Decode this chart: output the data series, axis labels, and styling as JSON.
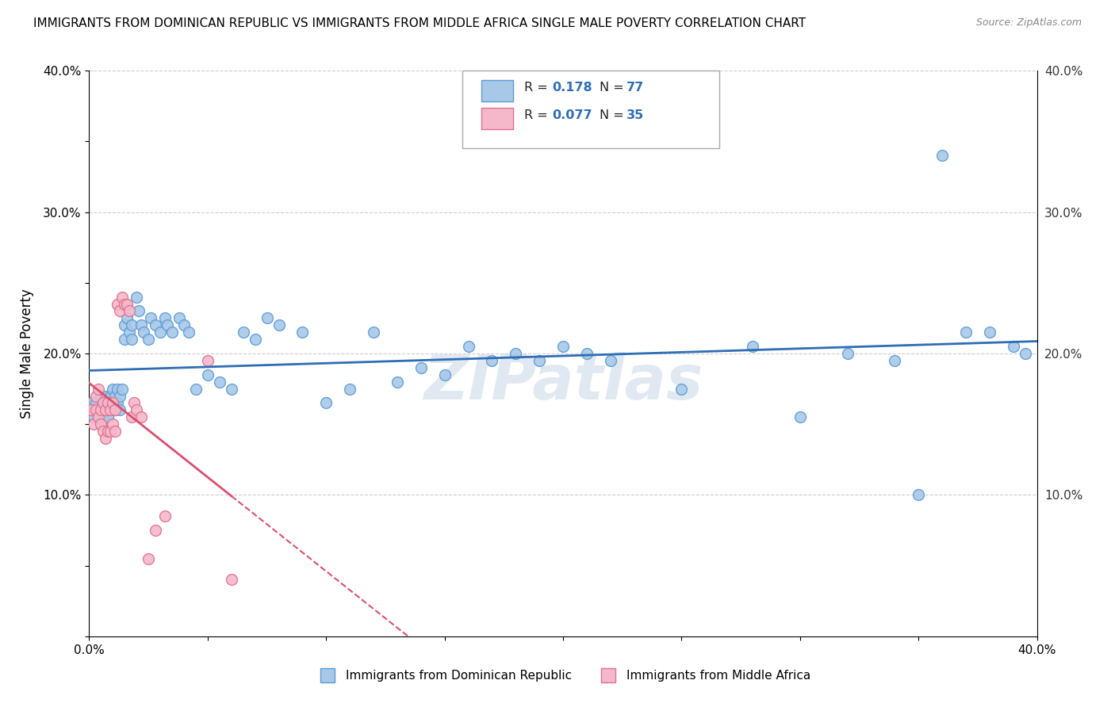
{
  "title": "IMMIGRANTS FROM DOMINICAN REPUBLIC VS IMMIGRANTS FROM MIDDLE AFRICA SINGLE MALE POVERTY CORRELATION CHART",
  "source": "Source: ZipAtlas.com",
  "ylabel": "Single Male Poverty",
  "xlim": [
    0,
    0.4
  ],
  "ylim": [
    0,
    0.4
  ],
  "series1_color": "#a8c8e8",
  "series1_edge": "#5b9bd5",
  "series2_color": "#f4b8ca",
  "series2_edge": "#e07090",
  "line1_color": "#2e6db4",
  "line2_color": "#d94f6e",
  "R1": 0.178,
  "N1": 77,
  "R2": 0.077,
  "N2": 35,
  "watermark": "ZIPatlas",
  "legend1_label": "Immigrants from Dominican Republic",
  "legend2_label": "Immigrants from Middle Africa",
  "series1_x": [
    0.001,
    0.002,
    0.003,
    0.004,
    0.005,
    0.005,
    0.005,
    0.006,
    0.006,
    0.007,
    0.007,
    0.008,
    0.008,
    0.009,
    0.009,
    0.01,
    0.01,
    0.011,
    0.011,
    0.012,
    0.012,
    0.013,
    0.013,
    0.014,
    0.015,
    0.015,
    0.016,
    0.017,
    0.018,
    0.018,
    0.02,
    0.021,
    0.022,
    0.023,
    0.025,
    0.026,
    0.028,
    0.03,
    0.032,
    0.033,
    0.035,
    0.038,
    0.04,
    0.042,
    0.045,
    0.05,
    0.055,
    0.06,
    0.065,
    0.07,
    0.075,
    0.08,
    0.09,
    0.1,
    0.11,
    0.12,
    0.13,
    0.14,
    0.15,
    0.16,
    0.17,
    0.18,
    0.19,
    0.2,
    0.21,
    0.22,
    0.25,
    0.28,
    0.3,
    0.32,
    0.34,
    0.35,
    0.36,
    0.37,
    0.38,
    0.39,
    0.395
  ],
  "series1_y": [
    0.165,
    0.155,
    0.165,
    0.155,
    0.17,
    0.16,
    0.15,
    0.165,
    0.155,
    0.17,
    0.16,
    0.165,
    0.155,
    0.17,
    0.16,
    0.175,
    0.165,
    0.17,
    0.16,
    0.175,
    0.165,
    0.17,
    0.16,
    0.175,
    0.22,
    0.21,
    0.225,
    0.215,
    0.22,
    0.21,
    0.24,
    0.23,
    0.22,
    0.215,
    0.21,
    0.225,
    0.22,
    0.215,
    0.225,
    0.22,
    0.215,
    0.225,
    0.22,
    0.215,
    0.175,
    0.185,
    0.18,
    0.175,
    0.215,
    0.21,
    0.225,
    0.22,
    0.215,
    0.165,
    0.175,
    0.215,
    0.18,
    0.19,
    0.185,
    0.205,
    0.195,
    0.2,
    0.195,
    0.205,
    0.2,
    0.195,
    0.175,
    0.205,
    0.155,
    0.2,
    0.195,
    0.1,
    0.34,
    0.215,
    0.215,
    0.205,
    0.2
  ],
  "series2_x": [
    0.001,
    0.002,
    0.003,
    0.003,
    0.004,
    0.004,
    0.005,
    0.005,
    0.006,
    0.006,
    0.007,
    0.007,
    0.008,
    0.008,
    0.009,
    0.009,
    0.01,
    0.01,
    0.011,
    0.011,
    0.012,
    0.013,
    0.014,
    0.015,
    0.016,
    0.017,
    0.018,
    0.019,
    0.02,
    0.022,
    0.025,
    0.028,
    0.032,
    0.05,
    0.06
  ],
  "series2_y": [
    0.16,
    0.15,
    0.17,
    0.16,
    0.175,
    0.155,
    0.16,
    0.15,
    0.165,
    0.145,
    0.16,
    0.14,
    0.165,
    0.145,
    0.16,
    0.145,
    0.165,
    0.15,
    0.16,
    0.145,
    0.235,
    0.23,
    0.24,
    0.235,
    0.235,
    0.23,
    0.155,
    0.165,
    0.16,
    0.155,
    0.055,
    0.075,
    0.085,
    0.195,
    0.04
  ]
}
